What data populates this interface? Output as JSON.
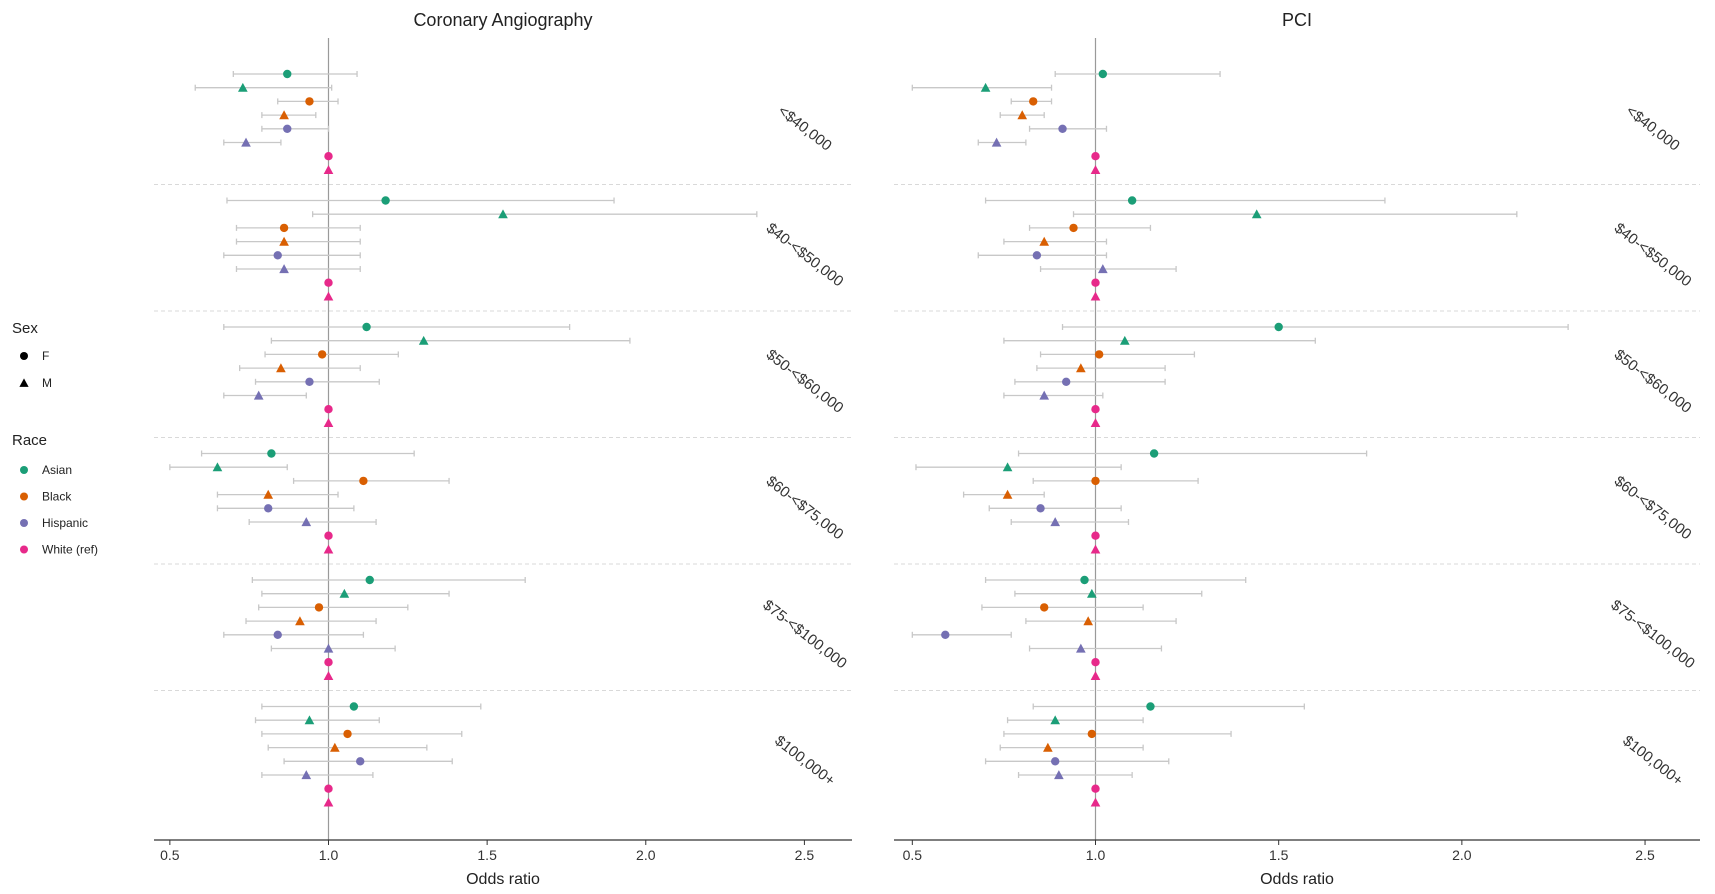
{
  "chart_data": [
    {
      "type": "scatter",
      "subtype": "forest",
      "title": "Coronary Angiography",
      "xlabel": "Odds ratio",
      "xlim": [
        0.45,
        2.65
      ],
      "xticks": [
        {
          "value": 0.5,
          "label": "0.5"
        },
        {
          "value": 1.0,
          "label": "1.0"
        },
        {
          "value": 1.5,
          "label": "1.5"
        },
        {
          "value": 2.0,
          "label": "2.0"
        },
        {
          "value": 2.5,
          "label": "2.5"
        }
      ],
      "reference_line": 1.0,
      "groups": [
        {
          "label": "<$40,000",
          "rows": [
            {
              "race": "Asian",
              "sex": "F",
              "or": 0.87,
              "lo": 0.7,
              "hi": 1.09
            },
            {
              "race": "Asian",
              "sex": "M",
              "or": 0.73,
              "lo": 0.58,
              "hi": 1.01
            },
            {
              "race": "Black",
              "sex": "F",
              "or": 0.94,
              "lo": 0.84,
              "hi": 1.03
            },
            {
              "race": "Black",
              "sex": "M",
              "or": 0.86,
              "lo": 0.79,
              "hi": 0.96
            },
            {
              "race": "Hispanic",
              "sex": "F",
              "or": 0.87,
              "lo": 0.79,
              "hi": 1.0
            },
            {
              "race": "Hispanic",
              "sex": "M",
              "or": 0.74,
              "lo": 0.67,
              "hi": 0.85
            },
            {
              "race": "White (ref)",
              "sex": "F",
              "or": 1.0
            },
            {
              "race": "White (ref)",
              "sex": "M",
              "or": 1.0
            }
          ]
        },
        {
          "label": "$40-<$50,000",
          "rows": [
            {
              "race": "Asian",
              "sex": "F",
              "or": 1.18,
              "lo": 0.68,
              "hi": 1.9
            },
            {
              "race": "Asian",
              "sex": "M",
              "or": 1.55,
              "lo": 0.95,
              "hi": 2.35
            },
            {
              "race": "Black",
              "sex": "F",
              "or": 0.86,
              "lo": 0.71,
              "hi": 1.1
            },
            {
              "race": "Black",
              "sex": "M",
              "or": 0.86,
              "lo": 0.71,
              "hi": 1.1
            },
            {
              "race": "Hispanic",
              "sex": "F",
              "or": 0.84,
              "lo": 0.67,
              "hi": 1.1
            },
            {
              "race": "Hispanic",
              "sex": "M",
              "or": 0.86,
              "lo": 0.71,
              "hi": 1.1
            },
            {
              "race": "White (ref)",
              "sex": "F",
              "or": 1.0
            },
            {
              "race": "White (ref)",
              "sex": "M",
              "or": 1.0
            }
          ]
        },
        {
          "label": "$50-<$60,000",
          "rows": [
            {
              "race": "Asian",
              "sex": "F",
              "or": 1.12,
              "lo": 0.67,
              "hi": 1.76
            },
            {
              "race": "Asian",
              "sex": "M",
              "or": 1.3,
              "lo": 0.82,
              "hi": 1.95
            },
            {
              "race": "Black",
              "sex": "F",
              "or": 0.98,
              "lo": 0.8,
              "hi": 1.22
            },
            {
              "race": "Black",
              "sex": "M",
              "or": 0.85,
              "lo": 0.72,
              "hi": 1.1
            },
            {
              "race": "Hispanic",
              "sex": "F",
              "or": 0.94,
              "lo": 0.77,
              "hi": 1.16
            },
            {
              "race": "Hispanic",
              "sex": "M",
              "or": 0.78,
              "lo": 0.67,
              "hi": 0.93
            },
            {
              "race": "White (ref)",
              "sex": "F",
              "or": 1.0
            },
            {
              "race": "White (ref)",
              "sex": "M",
              "or": 1.0
            }
          ]
        },
        {
          "label": "$60-<$75,000",
          "rows": [
            {
              "race": "Asian",
              "sex": "F",
              "or": 0.82,
              "lo": 0.6,
              "hi": 1.27
            },
            {
              "race": "Asian",
              "sex": "M",
              "or": 0.65,
              "lo": 0.5,
              "hi": 0.87
            },
            {
              "race": "Black",
              "sex": "F",
              "or": 1.11,
              "lo": 0.89,
              "hi": 1.38
            },
            {
              "race": "Black",
              "sex": "M",
              "or": 0.81,
              "lo": 0.65,
              "hi": 1.03
            },
            {
              "race": "Hispanic",
              "sex": "F",
              "or": 0.81,
              "lo": 0.65,
              "hi": 1.08
            },
            {
              "race": "Hispanic",
              "sex": "M",
              "or": 0.93,
              "lo": 0.75,
              "hi": 1.15
            },
            {
              "race": "White (ref)",
              "sex": "F",
              "or": 1.0
            },
            {
              "race": "White (ref)",
              "sex": "M",
              "or": 1.0
            }
          ]
        },
        {
          "label": "$75-<$100,000",
          "rows": [
            {
              "race": "Asian",
              "sex": "F",
              "or": 1.13,
              "lo": 0.76,
              "hi": 1.62
            },
            {
              "race": "Asian",
              "sex": "M",
              "or": 1.05,
              "lo": 0.79,
              "hi": 1.38
            },
            {
              "race": "Black",
              "sex": "F",
              "or": 0.97,
              "lo": 0.78,
              "hi": 1.25
            },
            {
              "race": "Black",
              "sex": "M",
              "or": 0.91,
              "lo": 0.74,
              "hi": 1.15
            },
            {
              "race": "Hispanic",
              "sex": "F",
              "or": 0.84,
              "lo": 0.67,
              "hi": 1.11
            },
            {
              "race": "Hispanic",
              "sex": "M",
              "or": 1.0,
              "lo": 0.82,
              "hi": 1.21
            },
            {
              "race": "White (ref)",
              "sex": "F",
              "or": 1.0
            },
            {
              "race": "White (ref)",
              "sex": "M",
              "or": 1.0
            }
          ]
        },
        {
          "label": "$100,000+",
          "rows": [
            {
              "race": "Asian",
              "sex": "F",
              "or": 1.08,
              "lo": 0.79,
              "hi": 1.48
            },
            {
              "race": "Asian",
              "sex": "M",
              "or": 0.94,
              "lo": 0.77,
              "hi": 1.16
            },
            {
              "race": "Black",
              "sex": "F",
              "or": 1.06,
              "lo": 0.79,
              "hi": 1.42
            },
            {
              "race": "Black",
              "sex": "M",
              "or": 1.02,
              "lo": 0.81,
              "hi": 1.31
            },
            {
              "race": "Hispanic",
              "sex": "F",
              "or": 1.1,
              "lo": 0.86,
              "hi": 1.39
            },
            {
              "race": "Hispanic",
              "sex": "M",
              "or": 0.93,
              "lo": 0.79,
              "hi": 1.14
            },
            {
              "race": "White (ref)",
              "sex": "F",
              "or": 1.0
            },
            {
              "race": "White (ref)",
              "sex": "M",
              "or": 1.0
            }
          ]
        }
      ]
    },
    {
      "type": "scatter",
      "subtype": "forest",
      "title": "PCI",
      "xlabel": "Odds ratio",
      "xlim": [
        0.45,
        2.65
      ],
      "xticks": [
        {
          "value": 0.5,
          "label": "0.5"
        },
        {
          "value": 1.0,
          "label": "1.0"
        },
        {
          "value": 1.5,
          "label": "1.5"
        },
        {
          "value": 2.0,
          "label": "2.0"
        },
        {
          "value": 2.5,
          "label": "2.5"
        }
      ],
      "reference_line": 1.0,
      "groups": [
        {
          "label": "<$40,000",
          "rows": [
            {
              "race": "Asian",
              "sex": "F",
              "or": 1.02,
              "lo": 0.89,
              "hi": 1.34
            },
            {
              "race": "Asian",
              "sex": "M",
              "or": 0.7,
              "lo": 0.5,
              "hi": 0.88
            },
            {
              "race": "Black",
              "sex": "F",
              "or": 0.83,
              "lo": 0.77,
              "hi": 0.88
            },
            {
              "race": "Black",
              "sex": "M",
              "or": 0.8,
              "lo": 0.74,
              "hi": 0.86
            },
            {
              "race": "Hispanic",
              "sex": "F",
              "or": 0.91,
              "lo": 0.82,
              "hi": 1.03
            },
            {
              "race": "Hispanic",
              "sex": "M",
              "or": 0.73,
              "lo": 0.68,
              "hi": 0.81
            },
            {
              "race": "White (ref)",
              "sex": "F",
              "or": 1.0
            },
            {
              "race": "White (ref)",
              "sex": "M",
              "or": 1.0
            }
          ]
        },
        {
          "label": "$40-<$50,000",
          "rows": [
            {
              "race": "Asian",
              "sex": "F",
              "or": 1.1,
              "lo": 0.7,
              "hi": 1.79
            },
            {
              "race": "Asian",
              "sex": "M",
              "or": 1.44,
              "lo": 0.94,
              "hi": 2.15
            },
            {
              "race": "Black",
              "sex": "F",
              "or": 0.94,
              "lo": 0.82,
              "hi": 1.15
            },
            {
              "race": "Black",
              "sex": "M",
              "or": 0.86,
              "lo": 0.75,
              "hi": 1.03
            },
            {
              "race": "Hispanic",
              "sex": "F",
              "or": 0.84,
              "lo": 0.68,
              "hi": 1.03
            },
            {
              "race": "Hispanic",
              "sex": "M",
              "or": 1.02,
              "lo": 0.85,
              "hi": 1.22
            },
            {
              "race": "White (ref)",
              "sex": "F",
              "or": 1.0
            },
            {
              "race": "White (ref)",
              "sex": "M",
              "or": 1.0
            }
          ]
        },
        {
          "label": "$50-<$60,000",
          "rows": [
            {
              "race": "Asian",
              "sex": "F",
              "or": 1.5,
              "lo": 0.91,
              "hi": 2.29
            },
            {
              "race": "Asian",
              "sex": "M",
              "or": 1.08,
              "lo": 0.75,
              "hi": 1.6
            },
            {
              "race": "Black",
              "sex": "F",
              "or": 1.01,
              "lo": 0.85,
              "hi": 1.27
            },
            {
              "race": "Black",
              "sex": "M",
              "or": 0.96,
              "lo": 0.84,
              "hi": 1.19
            },
            {
              "race": "Hispanic",
              "sex": "F",
              "or": 0.92,
              "lo": 0.78,
              "hi": 1.19
            },
            {
              "race": "Hispanic",
              "sex": "M",
              "or": 0.86,
              "lo": 0.75,
              "hi": 1.02
            },
            {
              "race": "White (ref)",
              "sex": "F",
              "or": 1.0
            },
            {
              "race": "White (ref)",
              "sex": "M",
              "or": 1.0
            }
          ]
        },
        {
          "label": "$60-<$75,000",
          "rows": [
            {
              "race": "Asian",
              "sex": "F",
              "or": 1.16,
              "lo": 0.79,
              "hi": 1.74
            },
            {
              "race": "Asian",
              "sex": "M",
              "or": 0.76,
              "lo": 0.51,
              "hi": 1.07
            },
            {
              "race": "Black",
              "sex": "F",
              "or": 1.0,
              "lo": 0.83,
              "hi": 1.28
            },
            {
              "race": "Black",
              "sex": "M",
              "or": 0.76,
              "lo": 0.64,
              "hi": 0.86
            },
            {
              "race": "Hispanic",
              "sex": "F",
              "or": 0.85,
              "lo": 0.71,
              "hi": 1.07
            },
            {
              "race": "Hispanic",
              "sex": "M",
              "or": 0.89,
              "lo": 0.77,
              "hi": 1.09
            },
            {
              "race": "White (ref)",
              "sex": "F",
              "or": 1.0
            },
            {
              "race": "White (ref)",
              "sex": "M",
              "or": 1.0
            }
          ]
        },
        {
          "label": "$75-<$100,000",
          "rows": [
            {
              "race": "Asian",
              "sex": "F",
              "or": 0.97,
              "lo": 0.7,
              "hi": 1.41
            },
            {
              "race": "Asian",
              "sex": "M",
              "or": 0.99,
              "lo": 0.78,
              "hi": 1.29
            },
            {
              "race": "Black",
              "sex": "F",
              "or": 0.86,
              "lo": 0.69,
              "hi": 1.13
            },
            {
              "race": "Black",
              "sex": "M",
              "or": 0.98,
              "lo": 0.81,
              "hi": 1.22
            },
            {
              "race": "Hispanic",
              "sex": "F",
              "or": 0.59,
              "lo": 0.5,
              "hi": 0.77
            },
            {
              "race": "Hispanic",
              "sex": "M",
              "or": 0.96,
              "lo": 0.82,
              "hi": 1.18
            },
            {
              "race": "White (ref)",
              "sex": "F",
              "or": 1.0
            },
            {
              "race": "White (ref)",
              "sex": "M",
              "or": 1.0
            }
          ]
        },
        {
          "label": "$100,000+",
          "rows": [
            {
              "race": "Asian",
              "sex": "F",
              "or": 1.15,
              "lo": 0.83,
              "hi": 1.57
            },
            {
              "race": "Asian",
              "sex": "M",
              "or": 0.89,
              "lo": 0.76,
              "hi": 1.13
            },
            {
              "race": "Black",
              "sex": "F",
              "or": 0.99,
              "lo": 0.75,
              "hi": 1.37
            },
            {
              "race": "Black",
              "sex": "M",
              "or": 0.87,
              "lo": 0.74,
              "hi": 1.13
            },
            {
              "race": "Hispanic",
              "sex": "F",
              "or": 0.89,
              "lo": 0.7,
              "hi": 1.2
            },
            {
              "race": "Hispanic",
              "sex": "M",
              "or": 0.9,
              "lo": 0.79,
              "hi": 1.1
            },
            {
              "race": "White (ref)",
              "sex": "F",
              "or": 1.0
            },
            {
              "race": "White (ref)",
              "sex": "M",
              "or": 1.0
            }
          ]
        }
      ]
    }
  ],
  "legend": {
    "sex": {
      "title": "Sex",
      "items": [
        {
          "key": "F",
          "label": "F",
          "shape": "circle"
        },
        {
          "key": "M",
          "label": "M",
          "shape": "triangle"
        }
      ]
    },
    "race": {
      "title": "Race",
      "items": [
        {
          "key": "Asian",
          "label": "Asian",
          "color": "#1b9e77"
        },
        {
          "key": "Black",
          "label": "Black",
          "color": "#d95f02"
        },
        {
          "key": "Hispanic",
          "label": "Hispanic",
          "color": "#7570b3"
        },
        {
          "key": "White (ref)",
          "label": "White (ref)",
          "color": "#e7298a"
        }
      ]
    }
  }
}
